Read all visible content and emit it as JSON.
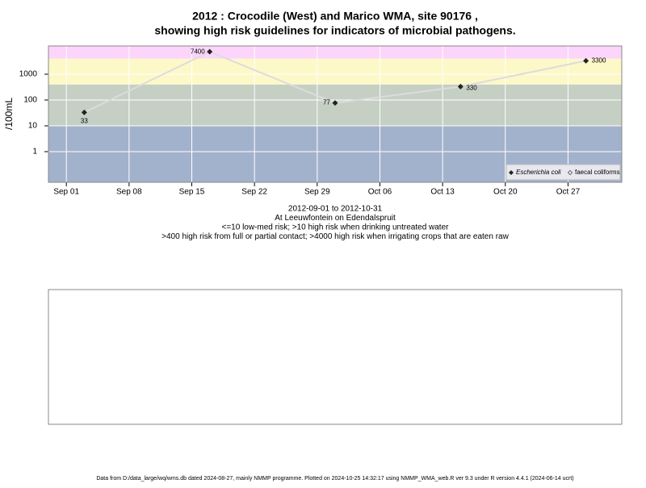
{
  "chart_data": {
    "type": "line",
    "title": "2012 : Crocodile (West) and Marico WMA, site 90176 ,",
    "subtitle": "showing high risk guidelines for indicators of microbial pathogens.",
    "y_label": "/100mL",
    "x_label_lines": [
      "2012-09-01 to 2012-10-31",
      "At Leeuwfontein on Edendalspruit",
      "<=10 low-med risk; >10 high risk when drinking untreated water",
      ">400 high risk from full or partial contact; >4000 high risk when irrigating crops that are eaten raw"
    ],
    "footer": "Data from D:/data_large/wq/wms.db dated 2024-08-27, mainly NMMP programme. Plotted on 2024-10-25 14:32:17 using NMMP_WMA_web.R ver 9.3 under R version 4.4.1 (2024-06-14 ucrt)",
    "x": [
      "2012-09-03",
      "2012-09-17",
      "2012-10-01",
      "2012-10-15",
      "2012-10-29"
    ],
    "series": [
      {
        "name": "Escherichia coli",
        "color": "#222222",
        "line_color": "#dcdcdc",
        "values": [
          33,
          7400,
          77,
          330,
          3300
        ]
      },
      {
        "name": "faecal coliforms",
        "color": "#222222",
        "values": [
          null,
          null,
          null,
          null,
          null
        ]
      }
    ],
    "xlim": [
      "2012-08-30",
      "2012-11-02"
    ],
    "xticks": [
      {
        "value": "2012-09-01",
        "label": "Sep 01"
      },
      {
        "value": "2012-09-08",
        "label": "Sep 08"
      },
      {
        "value": "2012-09-15",
        "label": "Sep 15"
      },
      {
        "value": "2012-09-22",
        "label": "Sep 22"
      },
      {
        "value": "2012-09-29",
        "label": "Sep 29"
      },
      {
        "value": "2012-10-06",
        "label": "Oct 06"
      },
      {
        "value": "2012-10-13",
        "label": "Oct 13"
      },
      {
        "value": "2012-10-20",
        "label": "Oct 20"
      },
      {
        "value": "2012-10-27",
        "label": "Oct 27"
      }
    ],
    "ylim": [
      0.065,
      12400
    ],
    "yticks": [
      1,
      10,
      100,
      1000
    ],
    "log_y": true,
    "grid": true,
    "legend": "bottom-right",
    "bands": [
      {
        "min": null,
        "max": 10,
        "color": "#a3b2cc"
      },
      {
        "min": 10,
        "max": 400,
        "color": "#c5cfc4"
      },
      {
        "min": 400,
        "max": 4000,
        "color": "#fdf8c8"
      },
      {
        "min": 4000,
        "max": null,
        "color": "#fbd5fb"
      }
    ]
  }
}
